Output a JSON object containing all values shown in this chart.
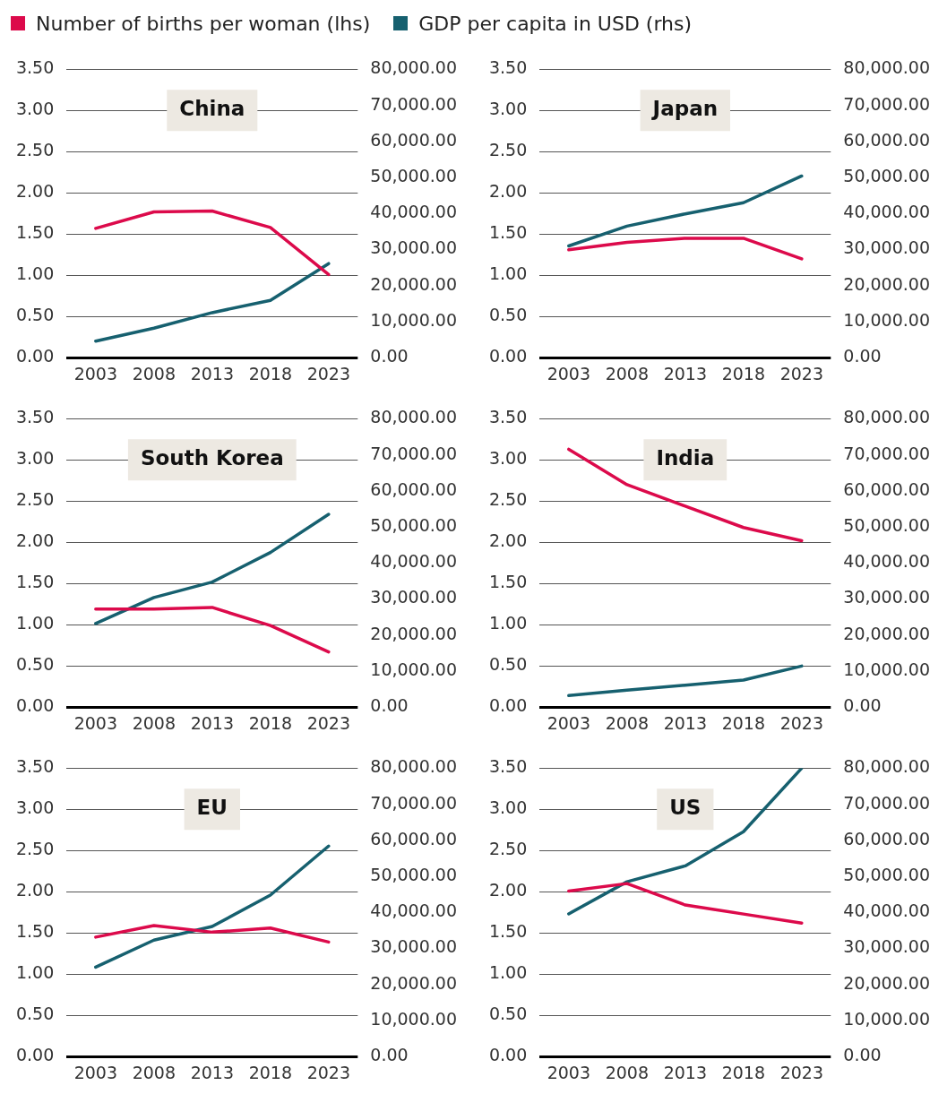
{
  "chart_data": [
    {
      "type": "line",
      "title": "China",
      "categories": [
        "2003",
        "2008",
        "2013",
        "2018",
        "2023"
      ],
      "legend": "top",
      "grid": "y",
      "marker": "none",
      "ylim": [
        0,
        3.5
      ],
      "yticks": [
        {
          "value": 0,
          "label": "0.00"
        },
        {
          "value": 0.5,
          "label": "0.50"
        },
        {
          "value": 1,
          "label": "1.00"
        },
        {
          "value": 1.5,
          "label": "1.50"
        },
        {
          "value": 2,
          "label": "2.00"
        },
        {
          "value": 2.5,
          "label": "2.50"
        },
        {
          "value": 3,
          "label": "3.00"
        },
        {
          "value": 3.5,
          "label": "3.50"
        }
      ],
      "y2lim": [
        0,
        80000
      ],
      "y2ticks": [
        {
          "value": 0,
          "label": "0.00"
        },
        {
          "value": 10000,
          "label": "10,000.00"
        },
        {
          "value": 20000,
          "label": "20,000.00"
        },
        {
          "value": 30000,
          "label": "30,000.00"
        },
        {
          "value": 40000,
          "label": "40,000.00"
        },
        {
          "value": 50000,
          "label": "50,000.00"
        },
        {
          "value": 60000,
          "label": "60,000.00"
        },
        {
          "value": 70000,
          "label": "70,000.00"
        },
        {
          "value": 80000,
          "label": "80,000.00"
        }
      ],
      "series": [
        {
          "name": "Number of births per woman (lhs)",
          "color": "#dc0a4b",
          "values": [
            1.57,
            1.77,
            1.78,
            1.58,
            1.01
          ]
        },
        {
          "name": "GDP per capita in USD (rhs)",
          "color": "#16606f",
          "axis": "y2",
          "values": [
            4600,
            8200,
            12500,
            15900,
            26100
          ]
        }
      ]
    },
    {
      "type": "line",
      "title": "Japan",
      "categories": [
        "2003",
        "2008",
        "2013",
        "2018",
        "2023"
      ],
      "grid": "y",
      "marker": "none",
      "ylim": [
        0,
        3.5
      ],
      "yticks": [
        {
          "value": 0,
          "label": "0.00"
        },
        {
          "value": 0.5,
          "label": "0.50"
        },
        {
          "value": 1,
          "label": "1.00"
        },
        {
          "value": 1.5,
          "label": "1.50"
        },
        {
          "value": 2,
          "label": "2.00"
        },
        {
          "value": 2.5,
          "label": "2.50"
        },
        {
          "value": 3,
          "label": "3.00"
        },
        {
          "value": 3.5,
          "label": "3.50"
        }
      ],
      "y2lim": [
        0,
        80000
      ],
      "y2ticks": [
        {
          "value": 0,
          "label": "0.00"
        },
        {
          "value": 10000,
          "label": "10,000.00"
        },
        {
          "value": 20000,
          "label": "20,000.00"
        },
        {
          "value": 30000,
          "label": "30,000.00"
        },
        {
          "value": 40000,
          "label": "40,000.00"
        },
        {
          "value": 50000,
          "label": "50,000.00"
        },
        {
          "value": 60000,
          "label": "60,000.00"
        },
        {
          "value": 70000,
          "label": "70,000.00"
        },
        {
          "value": 80000,
          "label": "80,000.00"
        }
      ],
      "series": [
        {
          "color": "#dc0a4b",
          "values": [
            1.31,
            1.4,
            1.45,
            1.45,
            1.2
          ]
        },
        {
          "color": "#16606f",
          "axis": "y2",
          "values": [
            31000,
            36500,
            39900,
            43000,
            50400
          ]
        }
      ]
    },
    {
      "type": "line",
      "title": "South Korea",
      "categories": [
        "2003",
        "2008",
        "2013",
        "2018",
        "2023"
      ],
      "grid": "y",
      "marker": "none",
      "ylim": [
        0,
        3.5
      ],
      "yticks": [
        {
          "value": 0,
          "label": "0.00"
        },
        {
          "value": 0.5,
          "label": "0.50"
        },
        {
          "value": 1,
          "label": "1.00"
        },
        {
          "value": 1.5,
          "label": "1.50"
        },
        {
          "value": 2,
          "label": "2.00"
        },
        {
          "value": 2.5,
          "label": "2.50"
        },
        {
          "value": 3,
          "label": "3.00"
        },
        {
          "value": 3.5,
          "label": "3.50"
        }
      ],
      "y2lim": [
        0,
        80000
      ],
      "y2ticks": [
        {
          "value": 0,
          "label": "0.00"
        },
        {
          "value": 10000,
          "label": "10,000.00"
        },
        {
          "value": 20000,
          "label": "20,000.00"
        },
        {
          "value": 30000,
          "label": "30,000.00"
        },
        {
          "value": 40000,
          "label": "40,000.00"
        },
        {
          "value": 50000,
          "label": "50,000.00"
        },
        {
          "value": 60000,
          "label": "60,000.00"
        },
        {
          "value": 70000,
          "label": "70,000.00"
        },
        {
          "value": 80000,
          "label": "80,000.00"
        }
      ],
      "series": [
        {
          "color": "#dc0a4b",
          "values": [
            1.19,
            1.19,
            1.21,
            0.99,
            0.67
          ]
        },
        {
          "color": "#16606f",
          "axis": "y2",
          "values": [
            23200,
            30400,
            34700,
            42900,
            53500
          ]
        }
      ]
    },
    {
      "type": "line",
      "title": "India",
      "categories": [
        "2003",
        "2008",
        "2013",
        "2018",
        "2023"
      ],
      "grid": "y",
      "marker": "none",
      "ylim": [
        0,
        3.5
      ],
      "yticks": [
        {
          "value": 0,
          "label": "0.00"
        },
        {
          "value": 0.5,
          "label": "0.50"
        },
        {
          "value": 1,
          "label": "1.00"
        },
        {
          "value": 1.5,
          "label": "1.50"
        },
        {
          "value": 2,
          "label": "2.00"
        },
        {
          "value": 2.5,
          "label": "2.50"
        },
        {
          "value": 3,
          "label": "3.00"
        },
        {
          "value": 3.5,
          "label": "3.50"
        }
      ],
      "y2lim": [
        0,
        80000
      ],
      "y2ticks": [
        {
          "value": 0,
          "label": "0.00"
        },
        {
          "value": 10000,
          "label": "10,000.00"
        },
        {
          "value": 20000,
          "label": "20,000.00"
        },
        {
          "value": 30000,
          "label": "30,000.00"
        },
        {
          "value": 40000,
          "label": "40,000.00"
        },
        {
          "value": 50000,
          "label": "50,000.00"
        },
        {
          "value": 60000,
          "label": "60,000.00"
        },
        {
          "value": 70000,
          "label": "70,000.00"
        },
        {
          "value": 80000,
          "label": "80,000.00"
        }
      ],
      "series": [
        {
          "color": "#dc0a4b",
          "values": [
            3.13,
            2.7,
            2.44,
            2.18,
            2.02
          ]
        },
        {
          "color": "#16606f",
          "axis": "y2",
          "values": [
            3200,
            4700,
            6100,
            7500,
            11400
          ]
        }
      ]
    },
    {
      "type": "line",
      "title": "EU",
      "categories": [
        "2003",
        "2008",
        "2013",
        "2018",
        "2023"
      ],
      "grid": "y",
      "marker": "none",
      "ylim": [
        0,
        3.5
      ],
      "yticks": [
        {
          "value": 0,
          "label": "0.00"
        },
        {
          "value": 0.5,
          "label": "0.50"
        },
        {
          "value": 1,
          "label": "1.00"
        },
        {
          "value": 1.5,
          "label": "1.50"
        },
        {
          "value": 2,
          "label": "2.00"
        },
        {
          "value": 2.5,
          "label": "2.50"
        },
        {
          "value": 3,
          "label": "3.00"
        },
        {
          "value": 3.5,
          "label": "3.50"
        }
      ],
      "y2lim": [
        0,
        80000
      ],
      "y2ticks": [
        {
          "value": 0,
          "label": "0.00"
        },
        {
          "value": 10000,
          "label": "10,000.00"
        },
        {
          "value": 20000,
          "label": "20,000.00"
        },
        {
          "value": 30000,
          "label": "30,000.00"
        },
        {
          "value": 40000,
          "label": "40,000.00"
        },
        {
          "value": 50000,
          "label": "50,000.00"
        },
        {
          "value": 60000,
          "label": "60,000.00"
        },
        {
          "value": 70000,
          "label": "70,000.00"
        },
        {
          "value": 80000,
          "label": "80,000.00"
        }
      ],
      "series": [
        {
          "color": "#dc0a4b",
          "values": [
            1.45,
            1.59,
            1.51,
            1.56,
            1.39
          ]
        },
        {
          "color": "#16606f",
          "axis": "y2",
          "values": [
            24800,
            32300,
            36100,
            44800,
            58400
          ]
        }
      ]
    },
    {
      "type": "line",
      "title": "US",
      "categories": [
        "2003",
        "2008",
        "2013",
        "2018",
        "2023"
      ],
      "grid": "y",
      "marker": "none",
      "ylim": [
        0,
        3.5
      ],
      "yticks": [
        {
          "value": 0,
          "label": "0.00"
        },
        {
          "value": 0.5,
          "label": "0.50"
        },
        {
          "value": 1,
          "label": "1.00"
        },
        {
          "value": 1.5,
          "label": "1.50"
        },
        {
          "value": 2,
          "label": "2.00"
        },
        {
          "value": 2.5,
          "label": "2.50"
        },
        {
          "value": 3,
          "label": "3.00"
        },
        {
          "value": 3.5,
          "label": "3.50"
        }
      ],
      "y2lim": [
        0,
        80000
      ],
      "y2ticks": [
        {
          "value": 0,
          "label": "0.00"
        },
        {
          "value": 10000,
          "label": "10,000.00"
        },
        {
          "value": 20000,
          "label": "20,000.00"
        },
        {
          "value": 30000,
          "label": "30,000.00"
        },
        {
          "value": 40000,
          "label": "40,000.00"
        },
        {
          "value": 50000,
          "label": "50,000.00"
        },
        {
          "value": 60000,
          "label": "60,000.00"
        },
        {
          "value": 70000,
          "label": "70,000.00"
        },
        {
          "value": 80000,
          "label": "80,000.00"
        }
      ],
      "series": [
        {
          "color": "#dc0a4b",
          "values": [
            2.01,
            2.1,
            1.84,
            1.73,
            1.62
          ]
        },
        {
          "color": "#16606f",
          "axis": "y2",
          "values": [
            39600,
            48500,
            52900,
            62400,
            80000
          ]
        }
      ]
    }
  ]
}
